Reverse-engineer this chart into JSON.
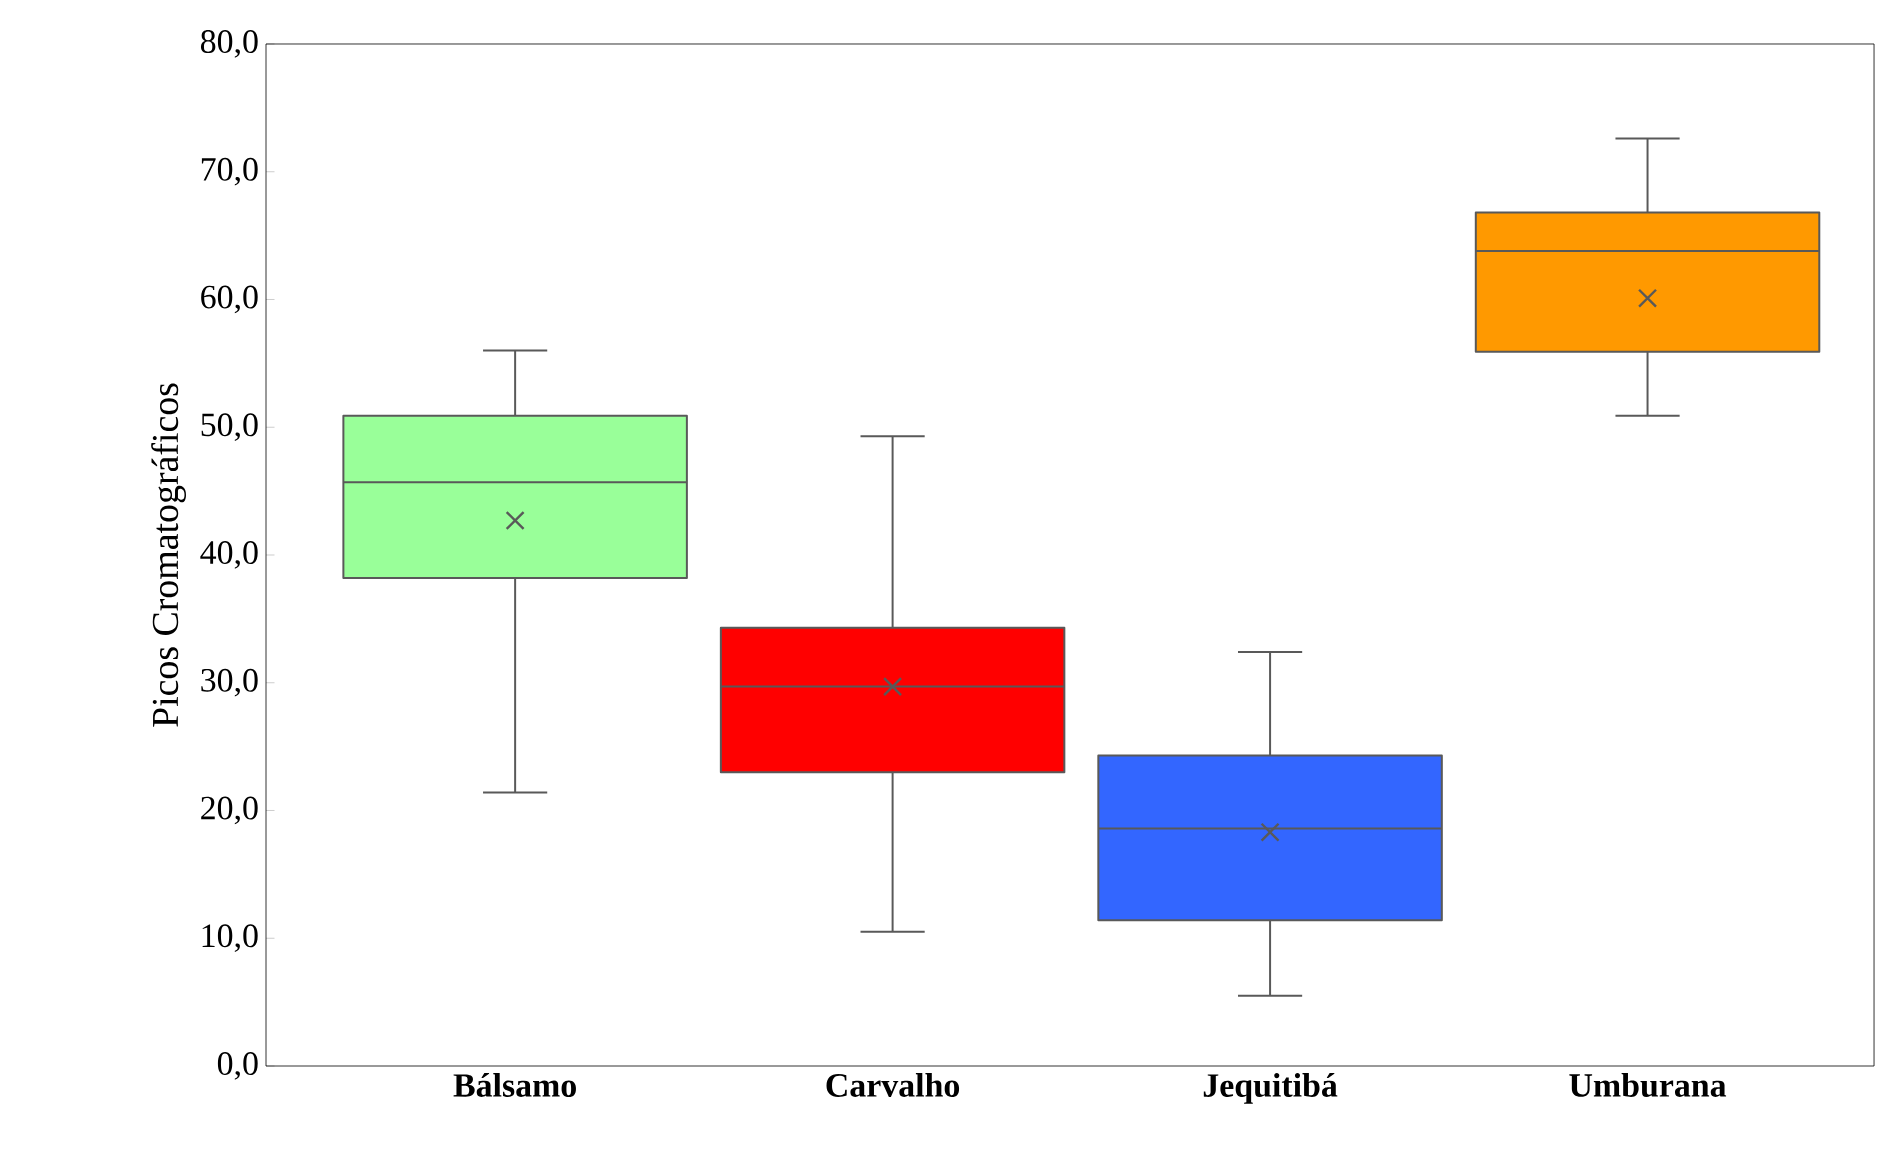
{
  "chart_data": {
    "type": "box",
    "ylabel": "Picos Cromatográficos",
    "categories": [
      "Bálsamo",
      "Carvalho",
      "Jequitibá",
      "Umburana"
    ],
    "colors": [
      "#99ff99",
      "#ff0000",
      "#3366ff",
      "#ff9900"
    ],
    "boxes": [
      {
        "low": 21.4,
        "q1": 38.2,
        "median": 45.7,
        "q3": 50.9,
        "high": 56.0,
        "mean": 42.7
      },
      {
        "low": 10.5,
        "q1": 23.0,
        "median": 29.7,
        "q3": 34.3,
        "high": 49.3,
        "mean": 29.7
      },
      {
        "low": 5.5,
        "q1": 11.4,
        "median": 18.6,
        "q3": 24.3,
        "high": 32.4,
        "mean": 18.3
      },
      {
        "low": 50.9,
        "q1": 55.9,
        "median": 63.8,
        "q3": 66.8,
        "high": 72.6,
        "mean": 60.1
      }
    ],
    "ylim": [
      0,
      80
    ],
    "yticks": [
      {
        "value": 0,
        "label": "0,0"
      },
      {
        "value": 10,
        "label": "10,0"
      },
      {
        "value": 20,
        "label": "20,0"
      },
      {
        "value": 30,
        "label": "30,0"
      },
      {
        "value": 40,
        "label": "40,0"
      },
      {
        "value": 50,
        "label": "50,0"
      },
      {
        "value": 60,
        "label": "60,0"
      },
      {
        "value": 70,
        "label": "70,0"
      },
      {
        "value": 80,
        "label": "80,0"
      }
    ],
    "grid": false,
    "marker": "cross"
  }
}
